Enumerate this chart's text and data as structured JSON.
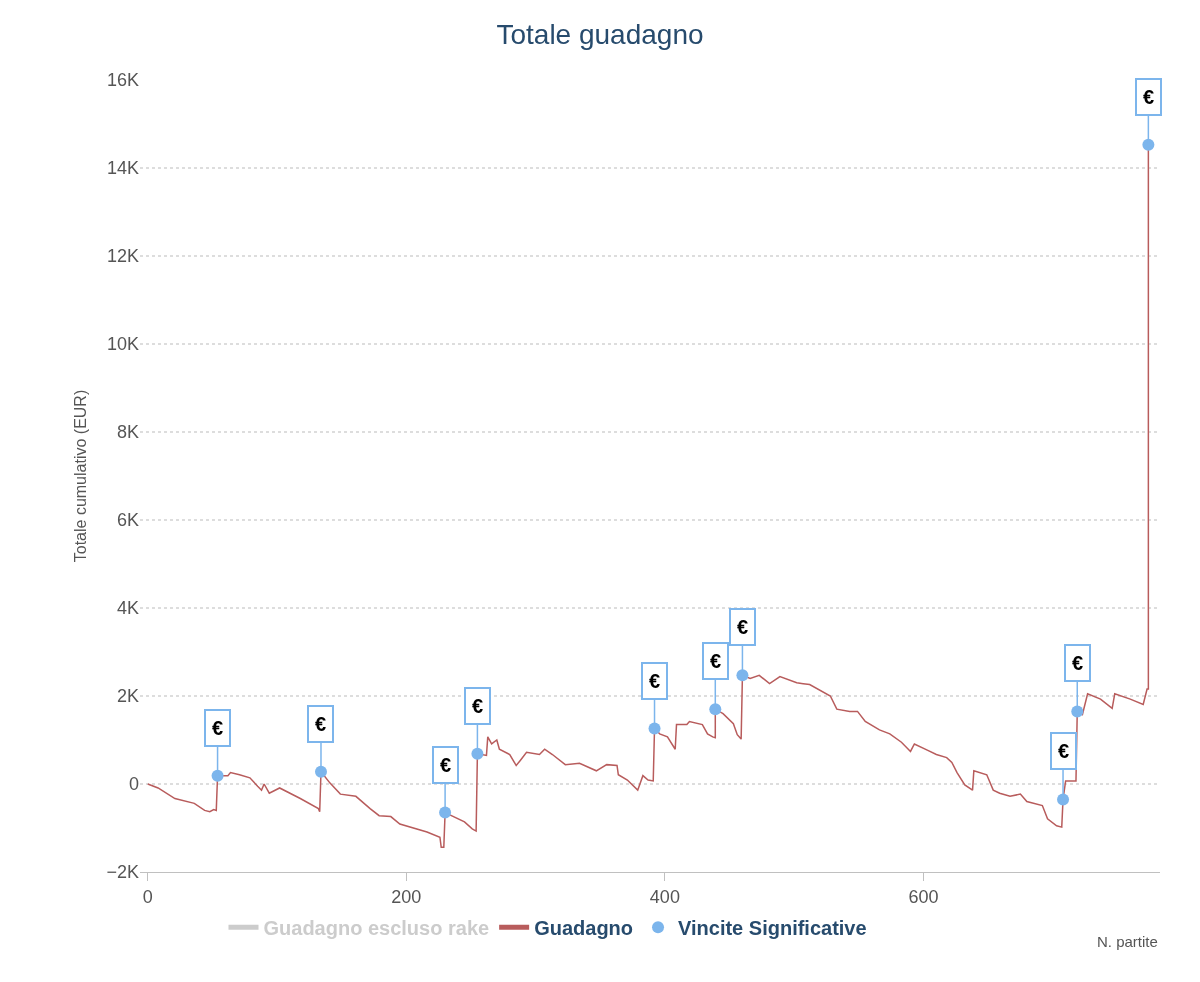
{
  "chart_data": {
    "type": "line",
    "title": "Totale guadagno",
    "xlabel": "N. partite",
    "ylabel": "Totale cumulativo (EUR)",
    "xlim": [
      -6,
      783
    ],
    "ylim": [
      -2000,
      16000
    ],
    "xticks": [
      0,
      200,
      400,
      600
    ],
    "yticks": [
      {
        "value": -2000,
        "label": "−2K"
      },
      0,
      {
        "value": 2000,
        "label": "2K"
      },
      {
        "value": 4000,
        "label": "4K"
      },
      {
        "value": 6000,
        "label": "6K"
      },
      {
        "value": 8000,
        "label": "8K"
      },
      {
        "value": 10000,
        "label": "10K"
      },
      {
        "value": 12000,
        "label": "12K"
      },
      {
        "value": 14000,
        "label": "14K"
      },
      {
        "value": 16000,
        "label": "16K"
      }
    ],
    "grid": "y",
    "legend": "bottom",
    "series": [
      {
        "name": "Guadagno escluso rake",
        "type": "line",
        "color": "#cccccc"
      },
      {
        "name": "Guadagno",
        "type": "line",
        "color": "#b85c5c",
        "marker": "none",
        "x": [
          0,
          8,
          21,
          36,
          44,
          48,
          51,
          53,
          54,
          62,
          64,
          71,
          79,
          85,
          88,
          90,
          94,
          102,
          118,
          132,
          133,
          134,
          141,
          149,
          161,
          172,
          179,
          188,
          195,
          216,
          226,
          227,
          229,
          230,
          245,
          251,
          254,
          255,
          262,
          263,
          266,
          270,
          272,
          280,
          285,
          288,
          293,
          303,
          307,
          313,
          323,
          334,
          347,
          355,
          363,
          364,
          371,
          379,
          383,
          387,
          391,
          392,
          396,
          402,
          408,
          409,
          417,
          419,
          429,
          433,
          437,
          439,
          439,
          445,
          453,
          456,
          459,
          460,
          466,
          473,
          481,
          489,
          502,
          507,
          512,
          528,
          533,
          543,
          549,
          555,
          566,
          574,
          583,
          590,
          593,
          603,
          610,
          618,
          622,
          626,
          632,
          638,
          639,
          649,
          654,
          659,
          667,
          675,
          680,
          692,
          696,
          703,
          707,
          708,
          710,
          718,
          719,
          723,
          727,
          737,
          746,
          748,
          760,
          770,
          773,
          774,
          774
        ],
        "values": [
          0,
          -90,
          -330,
          -440,
          -600,
          -630,
          -580,
          -600,
          190,
          190,
          260,
          210,
          140,
          -50,
          -140,
          0,
          -210,
          -90,
          -330,
          -560,
          -630,
          280,
          20,
          -230,
          -280,
          -560,
          -720,
          -740,
          -910,
          -1090,
          -1210,
          -1440,
          -1440,
          -650,
          -860,
          -1020,
          -1070,
          690,
          650,
          1070,
          910,
          1000,
          790,
          670,
          420,
          530,
          720,
          670,
          790,
          670,
          440,
          470,
          300,
          440,
          420,
          210,
          90,
          -140,
          190,
          90,
          70,
          1260,
          1140,
          1070,
          790,
          1350,
          1350,
          1420,
          1350,
          1140,
          1070,
          1050,
          1700,
          1600,
          1370,
          1120,
          1020,
          2470,
          2400,
          2470,
          2280,
          2440,
          2300,
          2280,
          2260,
          2000,
          1700,
          1650,
          1650,
          1420,
          1230,
          1140,
          950,
          740,
          910,
          770,
          670,
          600,
          490,
          260,
          -20,
          -140,
          300,
          210,
          -140,
          -210,
          -280,
          -230,
          -400,
          -490,
          -790,
          -950,
          -980,
          -350,
          70,
          70,
          1650,
          1580,
          2050,
          1930,
          1720,
          2050,
          1930,
          1810,
          2160,
          2160,
          14530
        ]
      },
      {
        "name": "Vincite Significative",
        "type": "scatter",
        "color": "#7cb5ec",
        "marker": "circle",
        "x": [
          54,
          134,
          230,
          255,
          392,
          439,
          460,
          708,
          719,
          774
        ],
        "values": [
          190,
          280,
          -650,
          690,
          1260,
          1700,
          2470,
          -350,
          1650,
          14530
        ]
      }
    ],
    "annotations": [
      {
        "text": "€",
        "x": 54,
        "y": 190
      },
      {
        "text": "€",
        "x": 134,
        "y": 280
      },
      {
        "text": "€",
        "x": 230,
        "y": -650
      },
      {
        "text": "€",
        "x": 255,
        "y": 690
      },
      {
        "text": "€",
        "x": 392,
        "y": 1260
      },
      {
        "text": "€",
        "x": 439,
        "y": 1700
      },
      {
        "text": "€",
        "x": 460,
        "y": 2470
      },
      {
        "text": "€",
        "x": 708,
        "y": -350
      },
      {
        "text": "€",
        "x": 719,
        "y": 1650
      },
      {
        "text": "€",
        "x": 774,
        "y": 14530
      }
    ]
  }
}
